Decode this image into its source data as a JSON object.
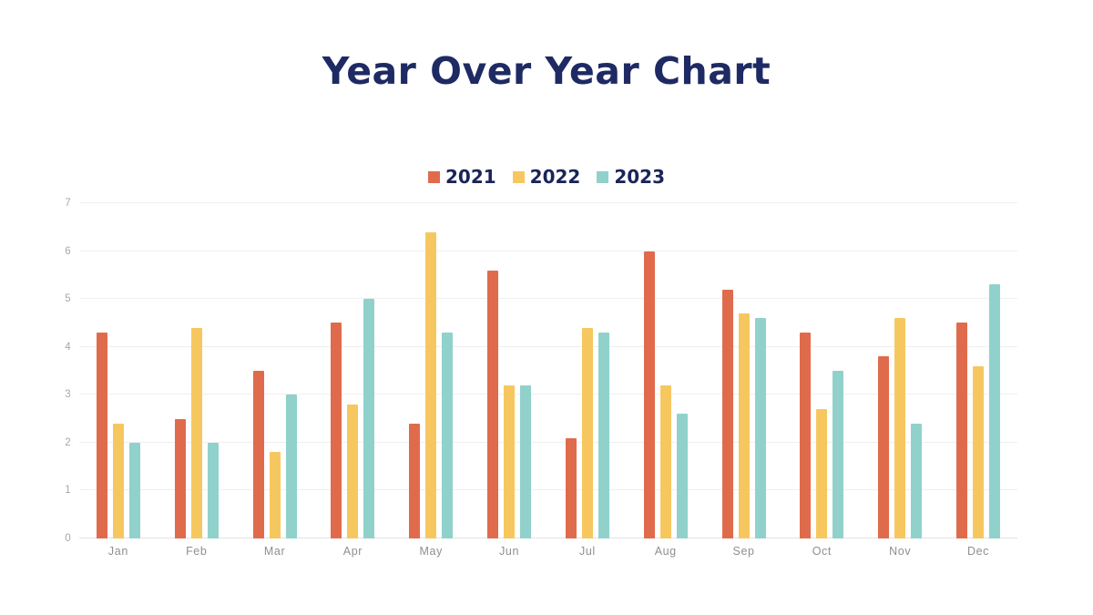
{
  "title": "Year Over Year Chart",
  "colors": {
    "title_text": "#1e2a63",
    "legend_text": "#1a2558",
    "gridline": "#efefef",
    "axis_line": "#e2e2e2",
    "y_tick_text": "#a8a8a8",
    "x_tick_text": "#8f8f8f",
    "background": "#ffffff",
    "series_2021": "#e06b4c",
    "series_2022": "#f7c75f",
    "series_2023": "#90d1cb"
  },
  "chart_data": {
    "type": "bar",
    "title": "Year Over Year Chart",
    "categories": [
      "Jan",
      "Feb",
      "Mar",
      "Apr",
      "May",
      "Jun",
      "Jul",
      "Aug",
      "Sep",
      "Oct",
      "Nov",
      "Dec"
    ],
    "series": [
      {
        "name": "2021",
        "color": "#e06b4c",
        "values": [
          4.3,
          2.5,
          3.5,
          4.5,
          2.4,
          5.6,
          2.1,
          6.0,
          5.2,
          4.3,
          3.8,
          4.5
        ]
      },
      {
        "name": "2022",
        "color": "#f7c75f",
        "values": [
          2.4,
          4.4,
          1.8,
          2.8,
          6.4,
          3.2,
          4.4,
          3.2,
          4.7,
          2.7,
          4.6,
          3.6
        ]
      },
      {
        "name": "2023",
        "color": "#90d1cb",
        "values": [
          2.0,
          2.0,
          3.0,
          5.0,
          4.3,
          3.2,
          4.3,
          2.6,
          4.6,
          3.5,
          2.4,
          5.3
        ]
      }
    ],
    "xlabel": "",
    "ylabel": "",
    "ylim": [
      0,
      7
    ],
    "yticks": [
      0,
      1,
      2,
      3,
      4,
      5,
      6,
      7
    ],
    "grid": true,
    "legend_position": "top-center"
  }
}
